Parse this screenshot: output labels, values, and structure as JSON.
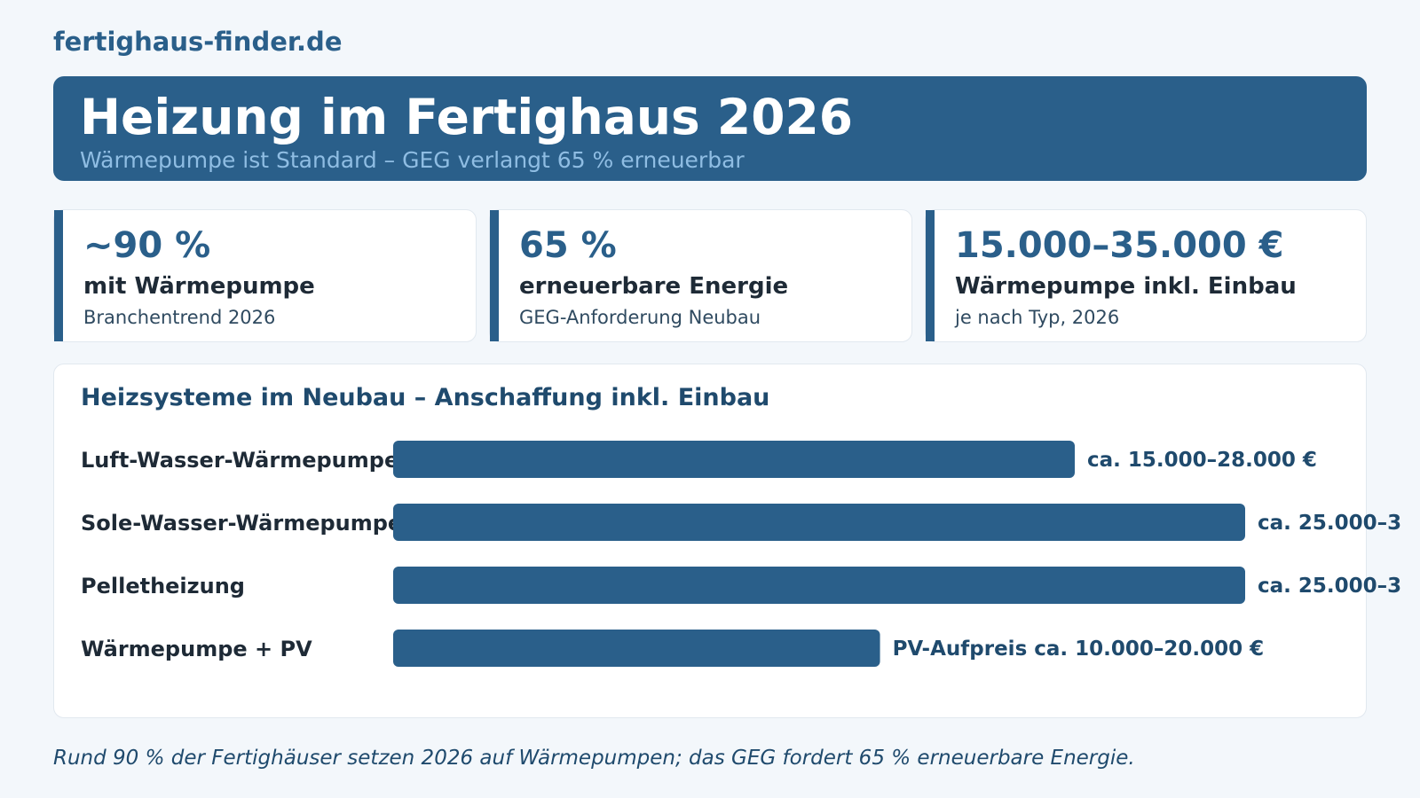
{
  "brand": "fertighaus-finder.de",
  "hero": {
    "title": "Heizung im Fertighaus 2026",
    "subtitle": "Wärmepumpe ist Standard – GEG verlangt 65 % erneuerbar"
  },
  "stats": [
    {
      "value": "~90 %",
      "label": "mit Wärmepumpe",
      "note": "Branchentrend 2026"
    },
    {
      "value": "65 %",
      "label": "erneuerbare Energie",
      "note": "GEG-Anforderung Neubau"
    },
    {
      "value": "15.000–35.000 €",
      "label": "Wärmepumpe inkl. Einbau",
      "note": "je nach Typ, 2026"
    }
  ],
  "chart_data": {
    "type": "bar",
    "orientation": "horizontal",
    "title": "Heizsysteme im Neubau – Anschaffung inkl. Einbau",
    "categories": [
      "Luft-Wasser-Wärmepumpe",
      "Sole-Wasser-Wärmepumpe",
      "Pelletheizung",
      "Wärmepumpe + PV"
    ],
    "values": [
      28000,
      35000,
      35000,
      20000
    ],
    "value_labels": [
      "ca. 15.000–28.000 €",
      "ca. 25.000–3",
      "ca. 25.000–3",
      "PV-Aufpreis ca. 10.000–20.000 €"
    ],
    "xlim": [
      0,
      35000
    ],
    "grid": false,
    "bar_color": "#2a5f8a"
  },
  "footnote": "Rund 90 % der Fertighäuser setzen 2026 auf Wärmepumpen; das GEG fordert 65 % erneuerbare Energie."
}
